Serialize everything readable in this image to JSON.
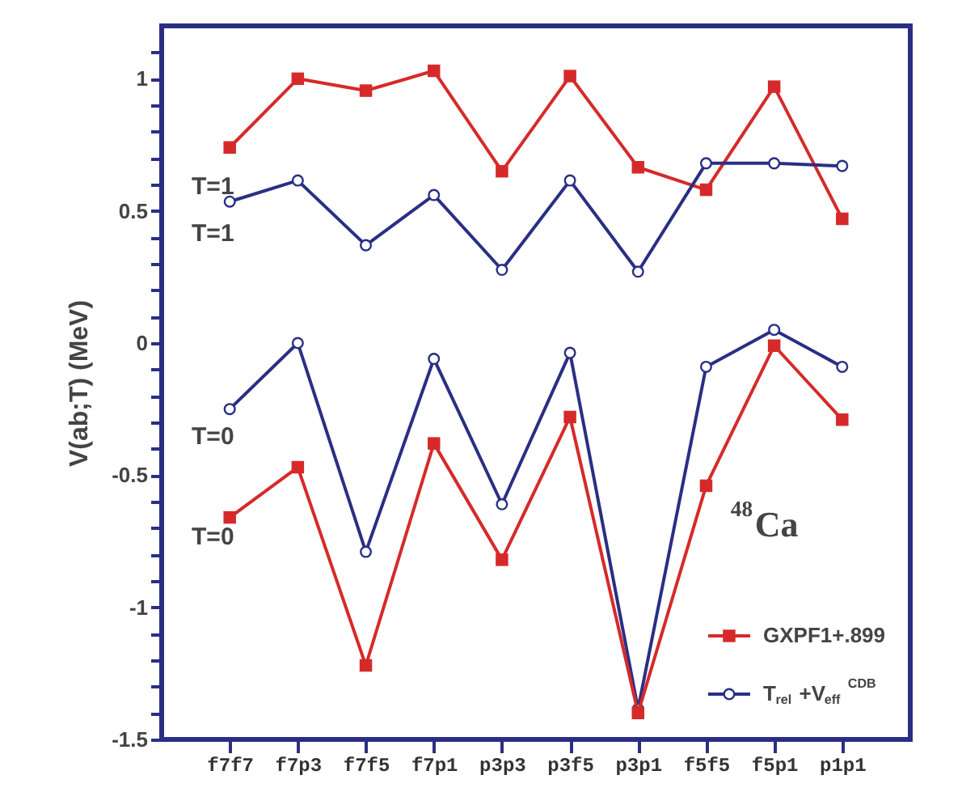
{
  "chart_data": {
    "type": "line",
    "ylabel": "V(ab;T) (MeV)",
    "categories": [
      "f7f7",
      "f7p3",
      "f7f5",
      "f7p1",
      "p3p3",
      "p3f5",
      "p3p1",
      "f5f5",
      "f5p1",
      "p1p1"
    ],
    "series": [
      {
        "name": "GXPF1+.899",
        "color": "#d62a2a",
        "marker": "square",
        "values": [
          0.74,
          1.0,
          0.955,
          1.03,
          0.65,
          1.01,
          0.665,
          0.58,
          0.97,
          0.47
        ]
      },
      {
        "name": "T$_{rel}$+V$_{eff}$$^{CDB}$",
        "color": "#2a2f84",
        "marker": "circle",
        "values": [
          0.535,
          0.615,
          0.37,
          0.56,
          0.277,
          0.615,
          0.27,
          0.68,
          0.68,
          0.67
        ]
      },
      {
        "color": "#2a2f84",
        "marker": "circle",
        "values": [
          -0.25,
          0.0,
          -0.79,
          -0.06,
          -0.61,
          -0.037,
          -1.385,
          -0.09,
          0.05,
          -0.09
        ]
      },
      {
        "color": "#d62a2a",
        "marker": "square",
        "values": [
          -0.66,
          -0.47,
          -1.22,
          -0.38,
          -0.82,
          -0.28,
          -1.4,
          -0.54,
          -0.01,
          -0.29
        ]
      }
    ],
    "ylim": [
      -1.5,
      1.2
    ],
    "yticks": [
      -1.5,
      {
        "value": -1.4,
        "label": null
      },
      {
        "value": -1.3,
        "label": null
      },
      {
        "value": -1.2,
        "label": null
      },
      {
        "value": -1.1,
        "label": null
      },
      -1,
      {
        "value": -0.9,
        "label": null
      },
      {
        "value": -0.8,
        "label": null
      },
      {
        "value": -0.7,
        "label": null
      },
      {
        "value": -0.6,
        "label": null
      },
      -0.5,
      {
        "value": -0.4,
        "label": null
      },
      {
        "value": -0.3,
        "label": null
      },
      {
        "value": -0.2,
        "label": null
      },
      {
        "value": -0.1,
        "label": null
      },
      0,
      {
        "value": 0.1,
        "label": null
      },
      {
        "value": 0.2,
        "label": null
      },
      {
        "value": 0.3,
        "label": null
      },
      {
        "value": 0.4,
        "label": null
      },
      0.5,
      {
        "value": 0.6,
        "label": null
      },
      {
        "value": 0.7,
        "label": null
      },
      {
        "value": 0.8,
        "label": null
      },
      {
        "value": 0.9,
        "label": null
      },
      1,
      {
        "value": 1.1,
        "label": null
      }
    ],
    "annotations": [
      "T=1",
      "T=1",
      "T=0",
      "T=0",
      "$^{48}$Ca"
    ],
    "legend": "bottom right",
    "grid": false
  }
}
